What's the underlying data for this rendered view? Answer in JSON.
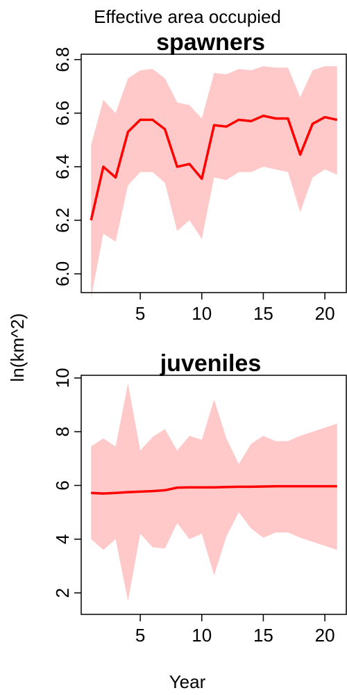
{
  "figure": {
    "title": "Effective area occupied",
    "ylabel": "ln(km^2)",
    "xlabel": "Year"
  },
  "colors": {
    "line": "#ff0000",
    "band": "#ffc9c9"
  },
  "chart_data": [
    {
      "type": "line",
      "title": "spawners",
      "xlabel": "Year",
      "ylabel": "ln(km^2)",
      "xlim": [
        0.2,
        21.8
      ],
      "ylim": [
        5.93,
        6.82
      ],
      "xticks": [
        5,
        10,
        15,
        20
      ],
      "yticks": [
        6.0,
        6.2,
        6.4,
        6.6,
        6.8
      ],
      "ytick_labels": [
        "6.0",
        "6.2",
        "6.4",
        "6.6",
        "6.8"
      ],
      "x": [
        1,
        2,
        3,
        4,
        5,
        6,
        7,
        8,
        9,
        10,
        11,
        12,
        13,
        14,
        15,
        16,
        17,
        18,
        19,
        20,
        21
      ],
      "series": [
        {
          "values": [
            6.2,
            6.4,
            6.36,
            6.53,
            6.575,
            6.575,
            6.54,
            6.4,
            6.41,
            6.355,
            6.555,
            6.55,
            6.575,
            6.57,
            6.59,
            6.58,
            6.58,
            6.445,
            6.56,
            6.585,
            6.575
          ],
          "lower": [
            5.91,
            6.15,
            6.12,
            6.33,
            6.38,
            6.38,
            6.34,
            6.16,
            6.2,
            6.13,
            6.36,
            6.35,
            6.38,
            6.38,
            6.4,
            6.39,
            6.38,
            6.23,
            6.36,
            6.39,
            6.37
          ],
          "upper": [
            6.48,
            6.65,
            6.6,
            6.73,
            6.76,
            6.765,
            6.73,
            6.64,
            6.63,
            6.58,
            6.75,
            6.745,
            6.765,
            6.76,
            6.775,
            6.77,
            6.77,
            6.66,
            6.76,
            6.775,
            6.775
          ]
        }
      ]
    },
    {
      "type": "line",
      "title": "juveniles",
      "xlabel": "Year",
      "ylabel": "ln(km^2)",
      "xlim": [
        0.2,
        21.8
      ],
      "ylim": [
        1.2,
        10.1
      ],
      "xticks": [
        5,
        10,
        15,
        20
      ],
      "yticks": [
        2,
        4,
        6,
        8,
        10
      ],
      "ytick_labels": [
        "2",
        "4",
        "6",
        "8",
        "10"
      ],
      "x": [
        1,
        2,
        3,
        4,
        5,
        6,
        7,
        8,
        9,
        10,
        11,
        12,
        13,
        14,
        15,
        16,
        17,
        18,
        19,
        20,
        21
      ],
      "series": [
        {
          "values": [
            5.72,
            5.7,
            5.72,
            5.75,
            5.77,
            5.79,
            5.82,
            5.92,
            5.93,
            5.93,
            5.93,
            5.94,
            5.95,
            5.95,
            5.96,
            5.97,
            5.97,
            5.97,
            5.97,
            5.97,
            5.97
          ],
          "lower": [
            4.0,
            3.6,
            4.0,
            1.7,
            4.2,
            3.7,
            3.65,
            4.6,
            4.0,
            4.2,
            2.65,
            4.1,
            5.0,
            4.4,
            4.05,
            4.25,
            4.25,
            4.05,
            3.9,
            3.75,
            3.6
          ],
          "upper": [
            7.45,
            7.75,
            7.45,
            9.8,
            7.3,
            7.8,
            8.1,
            7.3,
            7.85,
            7.7,
            9.2,
            7.75,
            6.8,
            7.55,
            7.85,
            7.65,
            7.65,
            7.85,
            8.0,
            8.15,
            8.3
          ]
        }
      ]
    }
  ]
}
